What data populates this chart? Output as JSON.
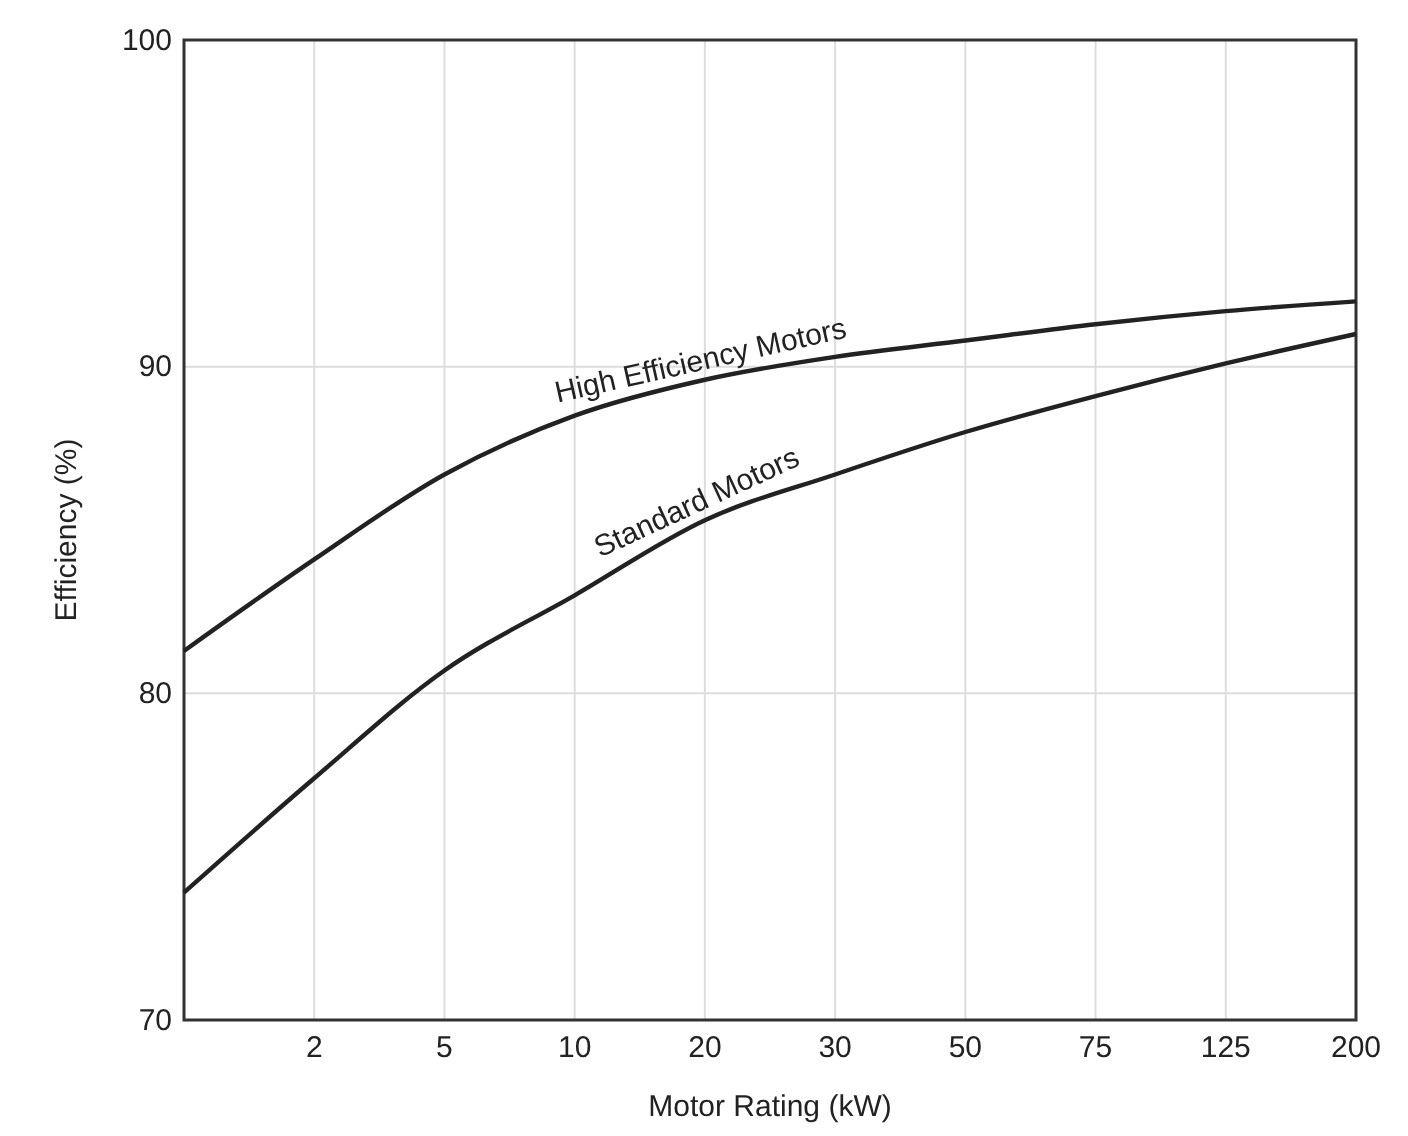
{
  "chart_data": {
    "type": "line",
    "xlabel": "Motor Rating (kW)",
    "ylabel": "Efficiency (%)",
    "categories": [
      null,
      "2",
      "5",
      "10",
      "20",
      "30",
      "50",
      "75",
      "125",
      "200"
    ],
    "series": [
      {
        "color": "#222222",
        "values": [
          81.3,
          84.1,
          86.7,
          88.5,
          89.6,
          90.3,
          90.8,
          91.3,
          91.7,
          92.0
        ]
      },
      {
        "color": "#222222",
        "values": [
          73.9,
          77.4,
          80.7,
          83.0,
          85.3,
          86.7,
          88.0,
          89.1,
          90.1,
          91.0
        ]
      }
    ],
    "ylim": [
      70,
      100
    ],
    "yticks": [
      70,
      80,
      90,
      100
    ],
    "grid": true,
    "line_style": "solid",
    "marker": "none",
    "annotations": [
      {
        "text": "High Efficiency Motors",
        "x": "20",
        "y": 89.6
      },
      {
        "text": "Standard Motors",
        "x": "20",
        "y": 85.3
      }
    ]
  }
}
